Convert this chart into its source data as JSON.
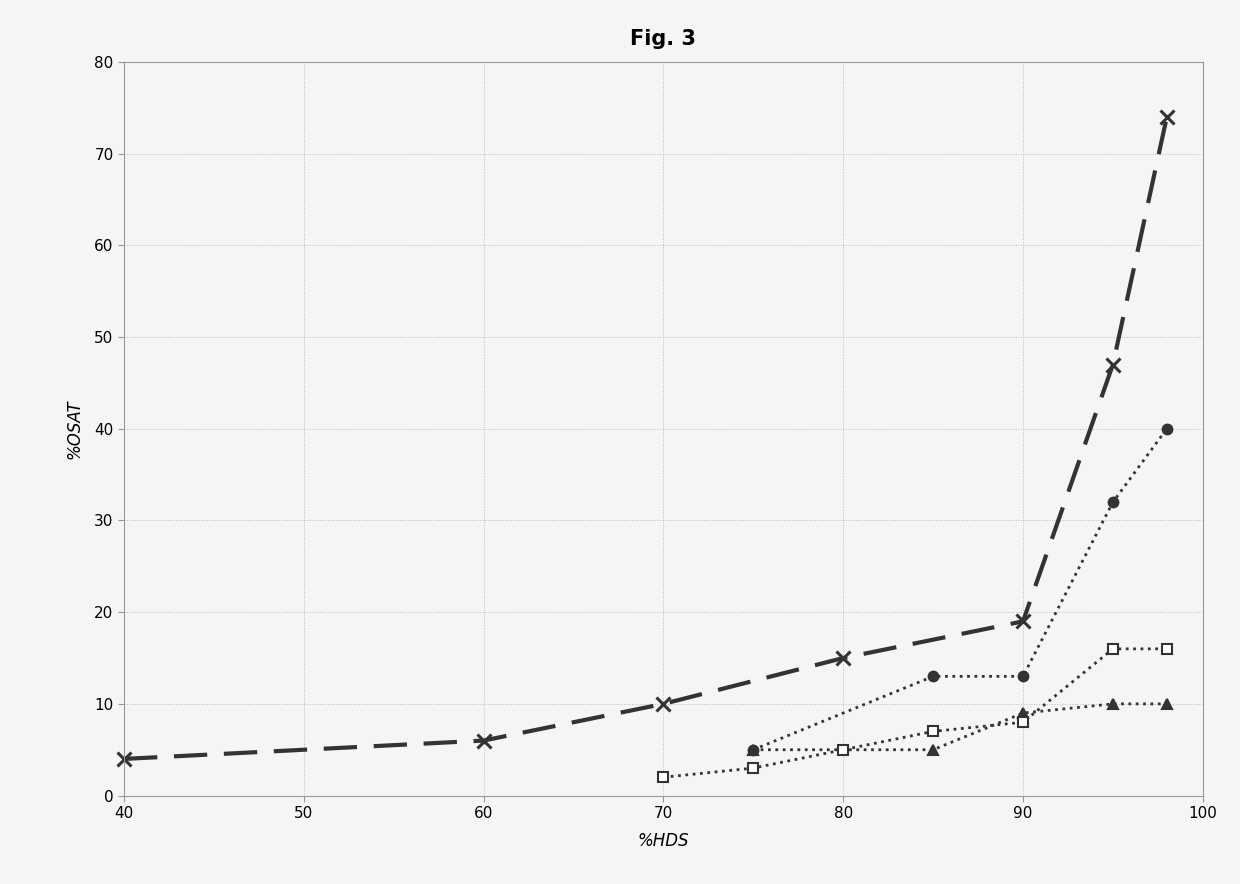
{
  "title": "Fig. 3",
  "xlabel": "%HDS",
  "ylabel": "%OSAT",
  "xlim": [
    40,
    100
  ],
  "ylim": [
    0,
    80
  ],
  "xticks": [
    40,
    50,
    60,
    70,
    80,
    90,
    100
  ],
  "yticks": [
    0,
    10,
    20,
    30,
    40,
    50,
    60,
    70,
    80
  ],
  "series": [
    {
      "name": "series1_dashed_x",
      "x": [
        40,
        60,
        70,
        80,
        90,
        95,
        98
      ],
      "y": [
        4,
        6,
        10,
        15,
        19,
        47,
        74
      ],
      "linestyle": "--",
      "marker": "x",
      "color": "#333333",
      "linewidth": 3.0,
      "markersize": 10,
      "markeredgewidth": 2.2,
      "markerfacecolor": "#333333",
      "dashes": [
        8,
        4
      ]
    },
    {
      "name": "series2_dotted_circle",
      "x": [
        75,
        85,
        90,
        95,
        98
      ],
      "y": [
        5,
        13,
        13,
        32,
        40
      ],
      "linestyle": ":",
      "marker": "o",
      "color": "#333333",
      "linewidth": 2.0,
      "markersize": 7,
      "markeredgewidth": 1.5,
      "markerfacecolor": "#333333"
    },
    {
      "name": "series3_dotted_triangle",
      "x": [
        75,
        85,
        90,
        95,
        98
      ],
      "y": [
        5,
        5,
        9,
        10,
        10
      ],
      "linestyle": ":",
      "marker": "^",
      "color": "#333333",
      "linewidth": 2.0,
      "markersize": 7,
      "markeredgewidth": 1.5,
      "markerfacecolor": "#333333"
    },
    {
      "name": "series4_dotted_square",
      "x": [
        70,
        75,
        80,
        85,
        90,
        95,
        98
      ],
      "y": [
        2,
        3,
        5,
        7,
        8,
        16,
        16
      ],
      "linestyle": ":",
      "marker": "s",
      "color": "#333333",
      "linewidth": 2.0,
      "markersize": 7,
      "markeredgewidth": 1.5,
      "markerfacecolor": "#ffffff"
    }
  ],
  "background_color": "#f5f5f5",
  "plot_bg_color": "#f5f5f5",
  "grid_color": "#bbbbbb",
  "grid_linestyle": ":",
  "grid_linewidth": 0.7,
  "title_fontsize": 15,
  "axis_label_fontsize": 12,
  "tick_fontsize": 11,
  "spine_color": "#999999",
  "spine_linewidth": 0.8
}
